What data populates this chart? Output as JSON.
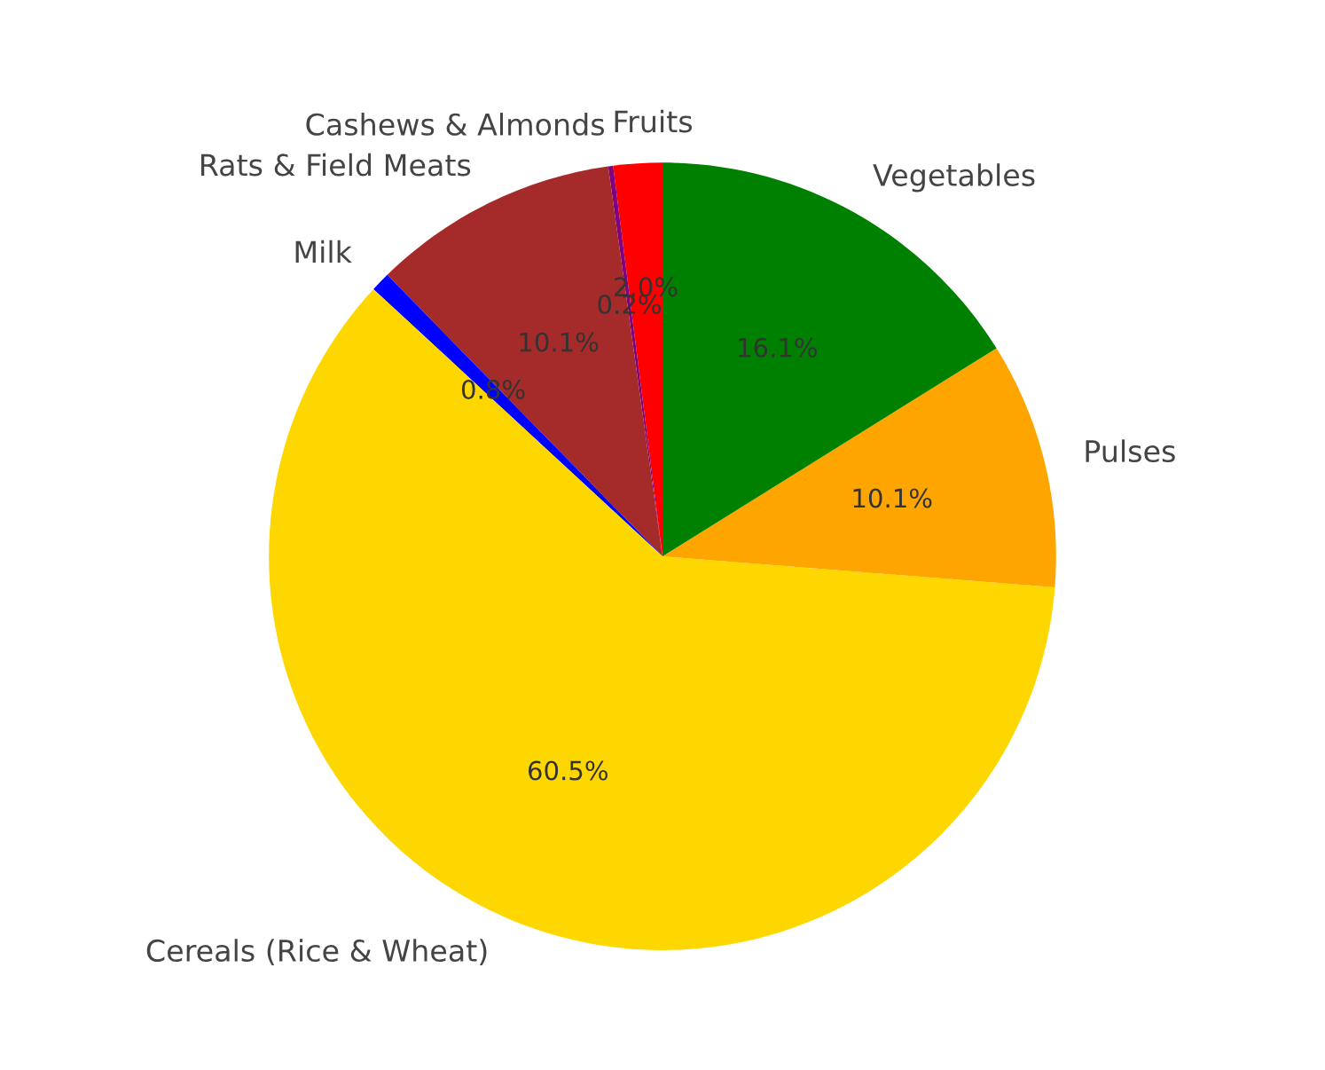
{
  "chart_data": {
    "type": "pie",
    "categories": [
      "Fruits",
      "Cashews & Almonds",
      "Rats & Field Meats",
      "Milk",
      "Cereals (Rice & Wheat)",
      "Pulses",
      "Vegetables"
    ],
    "values": [
      2.0,
      0.2,
      10.1,
      0.8,
      60.5,
      10.1,
      16.1
    ],
    "value_labels": [
      "2.0%",
      "0.2%",
      "10.1%",
      "0.8%",
      "60.5%",
      "10.1%",
      "16.1%"
    ],
    "colors": [
      "#ff0000",
      "#800080",
      "#a52a2a",
      "#0000ff",
      "#ffd700",
      "#ffa500",
      "#008000"
    ]
  }
}
